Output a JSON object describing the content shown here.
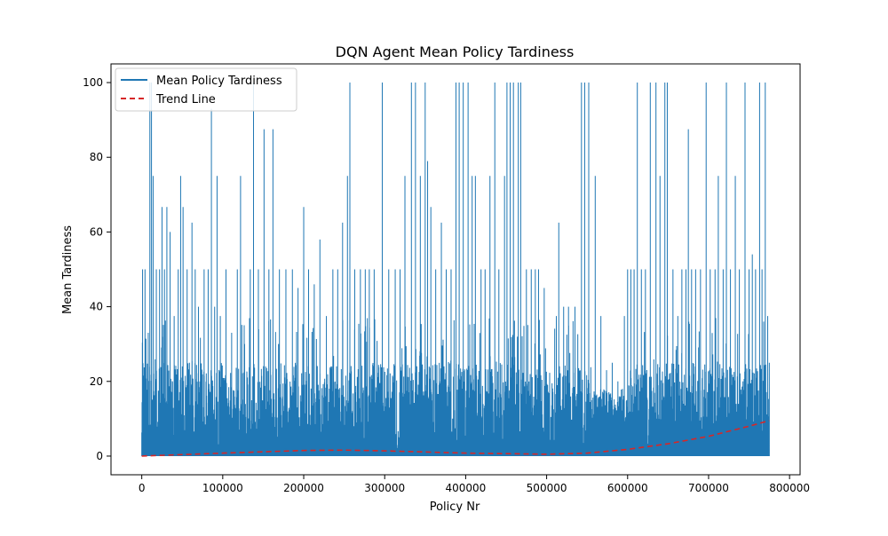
{
  "chart_data": {
    "type": "line",
    "title": "DQN Agent Mean Policy Tardiness",
    "xlabel": "Policy Nr",
    "ylabel": "Mean Tardiness",
    "xlim": [
      -38000,
      813000
    ],
    "ylim": [
      -5,
      105
    ],
    "x_ticks": [
      0,
      100000,
      200000,
      300000,
      400000,
      500000,
      600000,
      700000,
      800000
    ],
    "x_tick_labels": [
      "0",
      "100000",
      "200000",
      "300000",
      "400000",
      "500000",
      "600000",
      "700000",
      "800000"
    ],
    "y_ticks": [
      0,
      20,
      40,
      60,
      80,
      100
    ],
    "y_tick_labels": [
      "0",
      "20",
      "40",
      "60",
      "80",
      "100"
    ],
    "grid": false,
    "legend_position": "upper-left",
    "series": [
      {
        "name": "Mean Policy Tardiness",
        "style": "solid",
        "color": "#1f77b4",
        "x_range": [
          0,
          775000
        ],
        "typical_band": [
          0,
          25
        ],
        "peaks": [
          [
            1000,
            50
          ],
          [
            4000,
            50
          ],
          [
            8000,
            33
          ],
          [
            10000,
            100
          ],
          [
            12000,
            100
          ],
          [
            14000,
            75
          ],
          [
            18000,
            50
          ],
          [
            22000,
            50
          ],
          [
            25000,
            66.7
          ],
          [
            28000,
            50
          ],
          [
            31000,
            66.7
          ],
          [
            35000,
            60
          ],
          [
            40000,
            37.5
          ],
          [
            45000,
            50
          ],
          [
            48000,
            75
          ],
          [
            51000,
            66.7
          ],
          [
            56000,
            50
          ],
          [
            62000,
            62.5
          ],
          [
            66000,
            50
          ],
          [
            70000,
            40
          ],
          [
            77000,
            50
          ],
          [
            82000,
            50
          ],
          [
            86000,
            93
          ],
          [
            90000,
            40
          ],
          [
            93000,
            75
          ],
          [
            97000,
            37.5
          ],
          [
            104000,
            50
          ],
          [
            111000,
            33
          ],
          [
            118000,
            50
          ],
          [
            122000,
            75
          ],
          [
            127000,
            30
          ],
          [
            134000,
            50
          ],
          [
            138000,
            100
          ],
          [
            144000,
            50
          ],
          [
            151000,
            87.5
          ],
          [
            157000,
            50
          ],
          [
            162000,
            87.5
          ],
          [
            170000,
            50
          ],
          [
            178000,
            50
          ],
          [
            186000,
            50
          ],
          [
            193000,
            45
          ],
          [
            200000,
            66.7
          ],
          [
            206000,
            50
          ],
          [
            213000,
            46
          ],
          [
            220000,
            58
          ],
          [
            228000,
            37.5
          ],
          [
            236000,
            50
          ],
          [
            242000,
            50
          ],
          [
            248000,
            62.5
          ],
          [
            254000,
            75
          ],
          [
            257000,
            100
          ],
          [
            263000,
            50
          ],
          [
            270000,
            50
          ],
          [
            276000,
            50
          ],
          [
            281000,
            50
          ],
          [
            287000,
            50
          ],
          [
            297000,
            100
          ],
          [
            305000,
            50
          ],
          [
            313000,
            50
          ],
          [
            319000,
            50
          ],
          [
            325000,
            75
          ],
          [
            333000,
            100
          ],
          [
            338000,
            100
          ],
          [
            344000,
            75
          ],
          [
            350000,
            100
          ],
          [
            353000,
            79
          ],
          [
            357000,
            66.7
          ],
          [
            363000,
            50
          ],
          [
            370000,
            62.5
          ],
          [
            376000,
            50
          ],
          [
            382000,
            50
          ],
          [
            388000,
            100
          ],
          [
            392000,
            100
          ],
          [
            397000,
            100
          ],
          [
            403000,
            100
          ],
          [
            408000,
            75
          ],
          [
            412000,
            75
          ],
          [
            419000,
            50
          ],
          [
            424000,
            50
          ],
          [
            430000,
            75
          ],
          [
            436000,
            100
          ],
          [
            441000,
            50
          ],
          [
            448000,
            75
          ],
          [
            451000,
            100
          ],
          [
            455000,
            100
          ],
          [
            459000,
            100
          ],
          [
            465000,
            100
          ],
          [
            468000,
            100
          ],
          [
            475000,
            50
          ],
          [
            481000,
            50
          ],
          [
            486000,
            50
          ],
          [
            490000,
            50
          ],
          [
            497000,
            45
          ],
          [
            512000,
            37.5
          ],
          [
            515000,
            62.5
          ],
          [
            521000,
            40
          ],
          [
            527000,
            40
          ],
          [
            535000,
            40
          ],
          [
            543000,
            100
          ],
          [
            547000,
            100
          ],
          [
            552000,
            100
          ],
          [
            560000,
            75
          ],
          [
            567000,
            37.5
          ],
          [
            574000,
            23
          ],
          [
            581000,
            25
          ],
          [
            588000,
            20
          ],
          [
            596000,
            37.5
          ],
          [
            600000,
            50
          ],
          [
            604000,
            50
          ],
          [
            608000,
            50
          ],
          [
            612000,
            100
          ],
          [
            617000,
            50
          ],
          [
            622000,
            50
          ],
          [
            628000,
            100
          ],
          [
            635000,
            100
          ],
          [
            640000,
            75
          ],
          [
            646000,
            100
          ],
          [
            649000,
            100
          ],
          [
            656000,
            50
          ],
          [
            662000,
            37.5
          ],
          [
            667000,
            50
          ],
          [
            672000,
            50
          ],
          [
            675000,
            87.5
          ],
          [
            679000,
            50
          ],
          [
            684000,
            50
          ],
          [
            690000,
            50
          ],
          [
            697000,
            100
          ],
          [
            702000,
            50
          ],
          [
            708000,
            50
          ],
          [
            712000,
            75
          ],
          [
            718000,
            50
          ],
          [
            722000,
            100
          ],
          [
            727000,
            50
          ],
          [
            733000,
            75
          ],
          [
            738000,
            50
          ],
          [
            745000,
            100
          ],
          [
            750000,
            50
          ],
          [
            754000,
            54
          ],
          [
            758000,
            50
          ],
          [
            763000,
            100
          ],
          [
            766000,
            50
          ],
          [
            770000,
            100
          ],
          [
            773000,
            37.5
          ],
          [
            775000,
            25
          ]
        ]
      },
      {
        "name": "Trend Line",
        "style": "dashed",
        "color": "#d62728",
        "x": [
          0,
          100000,
          200000,
          250000,
          300000,
          400000,
          500000,
          550000,
          600000,
          650000,
          700000,
          750000,
          775000
        ],
        "y": [
          0,
          0.8,
          1.5,
          1.6,
          1.4,
          0.8,
          0.5,
          0.8,
          1.8,
          3.3,
          5.3,
          8.0,
          9.5
        ]
      }
    ]
  }
}
